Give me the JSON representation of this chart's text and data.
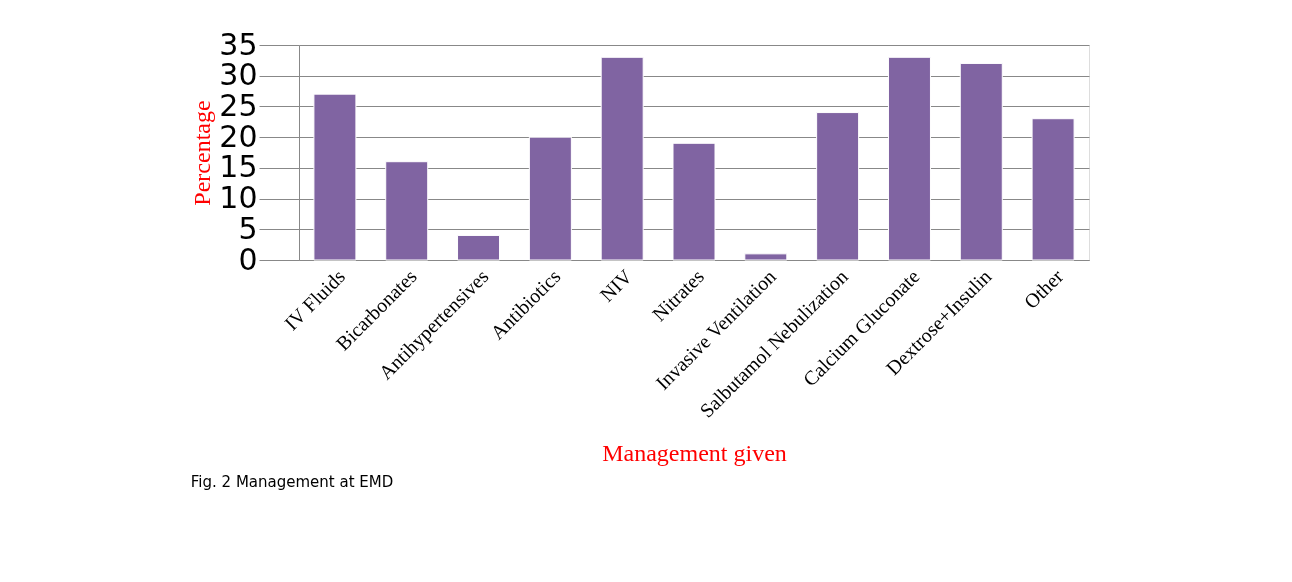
{
  "chart_data": {
    "type": "bar",
    "categories": [
      "IV Fluids",
      "Bicarbonates",
      "Antihypertensives",
      "Antibiotics",
      "NIV",
      "Nitrates",
      "Invasive Ventilation",
      "Salbutamol Nebulization",
      "Calcium Gluconate",
      "Dextrose+Insulin",
      "Other"
    ],
    "values": [
      27,
      16,
      4,
      20,
      33,
      19,
      1,
      24,
      33,
      32,
      23
    ],
    "color": "#8064a2",
    "ylabel": "Percentage",
    "xlabel": "Management given",
    "ylim": [
      0,
      35
    ],
    "yticks": [
      0,
      5,
      10,
      15,
      20,
      25,
      30,
      35
    ],
    "grid": "y",
    "annotations": [
      "Fig. 2 Management at EMD"
    ]
  }
}
